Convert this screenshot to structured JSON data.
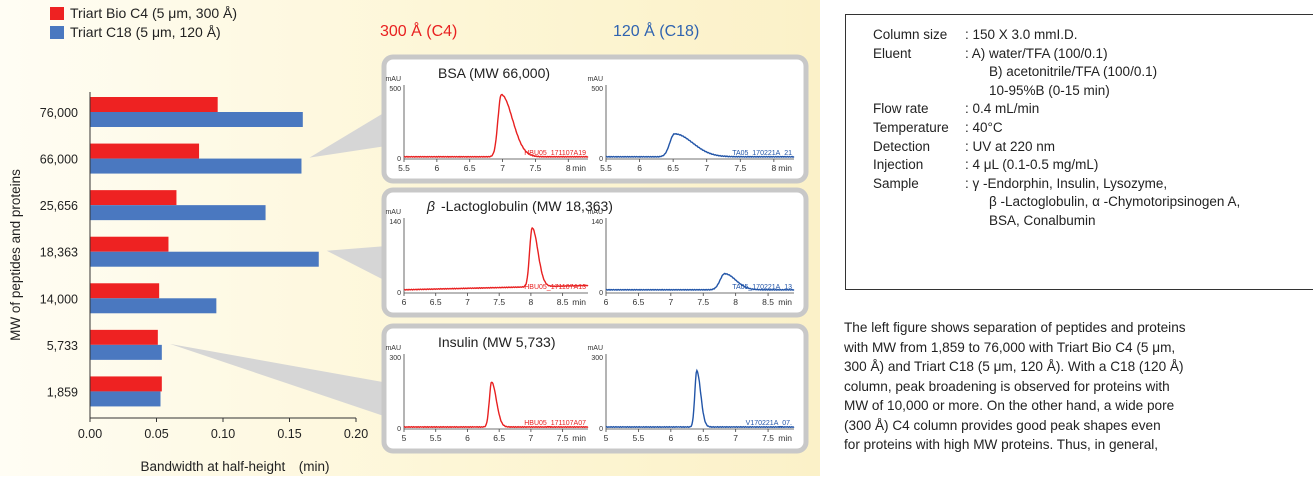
{
  "legend": [
    {
      "name": "Triart Bio C4 (5 μm, 300 Å)",
      "color": "#ee2222"
    },
    {
      "name": "Triart C18    (5 μm, 120 Å)",
      "color": "#4a78c0"
    }
  ],
  "column_headers": {
    "c4": "300 Å (C4)",
    "c18": "120 Å (C18)"
  },
  "chart_data": [
    {
      "type": "bar",
      "orientation": "horizontal",
      "categories": [
        "76,000",
        "66,000",
        "25,656",
        "18,363",
        "14,000",
        "5,733",
        "1,859"
      ],
      "series": [
        {
          "name": "Triart Bio C4 (5 μm, 300 Å)",
          "color": "#ee2222",
          "values": [
            0.096,
            0.082,
            0.065,
            0.059,
            0.052,
            0.051,
            0.054
          ]
        },
        {
          "name": "Triart C18    (5 μm, 120 Å)",
          "color": "#4a78c0",
          "values": [
            0.16,
            0.159,
            0.132,
            0.172,
            0.095,
            0.054,
            0.053
          ]
        }
      ],
      "xlabel": "Bandwidth at half-height　(min)",
      "ylabel": "MW of peptides and proteins",
      "xlim": [
        0,
        0.2
      ],
      "xticks": [
        "0.00",
        "0.05",
        "0.10",
        "0.15",
        "0.20"
      ],
      "grid": false,
      "legend_position": "top-left"
    },
    {
      "type": "line",
      "panel": "BSA (MW 66,000)",
      "ylabel": "mAU",
      "ylim": [
        0,
        500
      ],
      "yticks": [
        "0",
        "500"
      ],
      "xlabel": "min",
      "left": {
        "color": "#e82020",
        "file": "HBU05_171107A19",
        "xlim": [
          5.5,
          8.3
        ],
        "xticks": [
          "5.5",
          "6",
          "6.5",
          "7",
          "7.5",
          "8"
        ],
        "baseline": 15,
        "peaks": [
          {
            "t": 6.98,
            "h": 420,
            "w": 0.05,
            "tail": 0.12
          }
        ]
      },
      "right": {
        "color": "#2255a8",
        "file": "TA05_170221A_21",
        "xlim": [
          5.5,
          8.3
        ],
        "xticks": [
          "5.5",
          "6",
          "6.5",
          "7",
          "7.5",
          "8"
        ],
        "baseline": 15,
        "peaks": [
          {
            "t": 6.52,
            "h": 155,
            "w": 0.07,
            "tail": 0.2
          }
        ]
      }
    },
    {
      "type": "line",
      "panel": "-Lactoglobulin (MW 18,363)",
      "ylabel": "mAU",
      "ylim": [
        0,
        140
      ],
      "yticks": [
        "0",
        "140"
      ],
      "xlabel": "min",
      "left": {
        "color": "#e82020",
        "file": "HBU05_171107A13",
        "xlim": [
          6,
          8.9
        ],
        "xticks": [
          "6",
          "6.5",
          "7",
          "7.5",
          "8",
          "8.5"
        ],
        "baseline": 6,
        "baseline_end": 14,
        "peaks": [
          {
            "t": 8.02,
            "h": 110,
            "w": 0.04,
            "tail": 0.05
          }
        ]
      },
      "right": {
        "color": "#2255a8",
        "file": "TA05_170221A_13",
        "xlim": [
          6,
          8.9
        ],
        "xticks": [
          "6",
          "6.5",
          "7",
          "7.5",
          "8",
          "8.5"
        ],
        "baseline": 6,
        "peaks": [
          {
            "t": 7.83,
            "h": 30,
            "w": 0.07,
            "tail": 0.1
          }
        ]
      }
    },
    {
      "type": "line",
      "panel": "Insulin (MW 5,733)",
      "ylabel": "mAU",
      "ylim": [
        0,
        300
      ],
      "yticks": [
        "0",
        "300"
      ],
      "xlabel": "min",
      "left": {
        "color": "#e82020",
        "file": "HBU05_171107A07",
        "xlim": [
          5,
          7.9
        ],
        "xticks": [
          "5",
          "5.5",
          "6",
          "6.5",
          "7",
          "7.5"
        ],
        "baseline": 8,
        "peaks": [
          {
            "t": 6.38,
            "h": 180,
            "w": 0.035,
            "tail": 0.04
          }
        ]
      },
      "right": {
        "color": "#2255a8",
        "file": "V170221A_07.",
        "xlim": [
          5,
          7.9
        ],
        "xticks": [
          "5",
          "5.5",
          "6",
          "6.5",
          "7",
          "7.5"
        ],
        "baseline": 8,
        "peaks": [
          {
            "t": 6.4,
            "h": 225,
            "w": 0.03,
            "tail": 0.03
          }
        ]
      }
    }
  ],
  "conditions": [
    {
      "label": "Column size",
      "value": ": 150 X 3.0 mmI.D.",
      "cont": []
    },
    {
      "label": "Eluent",
      "value": ": A) water/TFA (100/0.1)",
      "cont": [
        "B) acetonitrile/TFA (100/0.1)",
        "10-95%B (0-15 min)"
      ]
    },
    {
      "label": "Flow rate",
      "value": ": 0.4 mL/min",
      "cont": []
    },
    {
      "label": "Temperature",
      "value": ": 40°C",
      "cont": []
    },
    {
      "label": "Detection",
      "value": ": UV at 220 nm",
      "cont": []
    },
    {
      "label": "Injection",
      "value": ": 4 μL (0.1-0.5 mg/mL)",
      "cont": []
    },
    {
      "label": "Sample",
      "value": ": γ -Endorphin, Insulin, Lysozyme,",
      "cont": [
        "β -Lactoglobulin, α -Chymotoripsinogen A,",
        "BSA, Conalbumin"
      ]
    }
  ],
  "description_lines": [
    "The left figure shows separation of peptides and proteins",
    "with MW from 1,859 to 76,000 with Triart Bio C4 (5 μm,",
    "300 Å) and Triart C18 (5 μm, 120 Å). With a C18 (120 Å)",
    "column, peak broadening is observed for proteins with",
    "MW of 10,000 or more. On the other hand, a wide pore",
    "(300 Å) C4 column provides good peak shapes even",
    "for proteins with high MW proteins. Thus, in general,"
  ]
}
